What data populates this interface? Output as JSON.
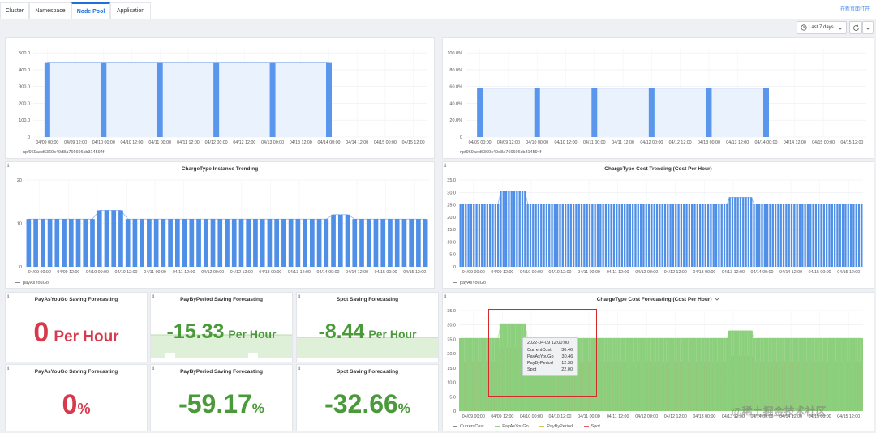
{
  "tabs": [
    "Cluster",
    "Namespace",
    "Node Pool",
    "Application"
  ],
  "new_window_link": "在新页面打开",
  "toolbar": {
    "time_range": "Last 7 days",
    "clock_icon": "clock-icon",
    "refresh_icon": "refresh-icon",
    "chevron_icon": "chevron-down-icon"
  },
  "panels": {
    "top_left": {
      "legend": "npf969aed6369c49d8a766696cb314594f"
    },
    "top_right": {
      "legend": "npf969aed6369c49d8a766696cb314594f"
    },
    "instance_trending": {
      "title": "ChargeType Instance Trending",
      "legend": "payAsYouGo"
    },
    "cost_trending": {
      "title": "ChargeType Cost Trending (Cost Per Hour)",
      "legend": "payAsYouGo"
    },
    "payg_saving": {
      "title": "PayAsYouGo Saving Forecasting",
      "value": "0",
      "unit": "Per Hour",
      "color": "#d63a4c"
    },
    "pbp_saving": {
      "title": "PayByPeriod Saving Forecasting",
      "value": "-15.33",
      "unit": "Per Hour",
      "color": "#4a9a3a"
    },
    "spot_saving": {
      "title": "Spot Saving Forecasting",
      "value": "-8.44",
      "unit": "Per Hour",
      "color": "#4a9a3a"
    },
    "payg_pct": {
      "title": "PayAsYouGo Saving Forecasting",
      "value": "0",
      "unit": "%",
      "color": "#d63a4c"
    },
    "pbp_pct": {
      "title": "PayByPeriod Saving Forecasting",
      "value": "-59.17",
      "unit": "%",
      "color": "#4a9a3a"
    },
    "spot_pct": {
      "title": "Spot Saving Forecasting",
      "value": "-32.66",
      "unit": "%",
      "color": "#4a9a3a"
    },
    "cost_forecasting": {
      "title": "ChargeType Cost Forecasting (Cost Per Hour)",
      "legend": [
        "CurrentCost",
        "PayAsYouGo",
        "PayByPeriod",
        "Spot"
      ],
      "tooltip": {
        "time": "2022-04-09 12:00:00",
        "rows": [
          {
            "name": "CurrentCost",
            "value": "30.46"
          },
          {
            "name": "PayAsYouGo",
            "value": "30.46"
          },
          {
            "name": "PayByPeriod",
            "value": "12.38"
          },
          {
            "name": "Spot",
            "value": "22.00"
          }
        ]
      }
    }
  },
  "watermark": "@稀土掘金技术社区",
  "chart_data": [
    {
      "id": "top_left",
      "type": "bar",
      "title": "",
      "x_ticks": [
        "04/09 00:00",
        "04/09 12:00",
        "04/10 00:00",
        "04/10 12:00",
        "04/11 00:00",
        "04/11 12:00",
        "04/12 00:00",
        "04/12 12:00",
        "04/13 00:00",
        "04/13 12:00",
        "04/14 00:00",
        "04/14 12:00",
        "04/15 00:00",
        "04/15 12:00"
      ],
      "y_ticks": [
        "0",
        "100.0",
        "200.0",
        "300.0",
        "400.0",
        "500.0"
      ],
      "ylim": [
        0,
        520
      ],
      "series": [
        {
          "name": "npf969aed6369c49d8a766696cb314594f",
          "bars": [
            {
              "x": 0,
              "value": 440
            },
            {
              "x": 2,
              "value": 440
            },
            {
              "x": 4,
              "value": 440
            },
            {
              "x": 6,
              "value": 440
            },
            {
              "x": 8,
              "value": 440
            },
            {
              "x": 10,
              "value": 440
            }
          ],
          "fill_until": 10
        }
      ]
    },
    {
      "id": "top_right",
      "type": "bar",
      "title": "",
      "x_ticks": [
        "04/09 00:00",
        "04/09 12:00",
        "04/10 00:00",
        "04/10 12:00",
        "04/11 00:00",
        "04/11 12:00",
        "04/12 00:00",
        "04/12 12:00",
        "04/13 00:00",
        "04/13 12:00",
        "04/14 00:00",
        "04/14 12:00",
        "04/15 00:00",
        "04/15 12:00"
      ],
      "y_ticks": [
        "0",
        "20.0%",
        "40.0%",
        "60.0%",
        "80.0%",
        "100.0%"
      ],
      "ylim": [
        0,
        104
      ],
      "series": [
        {
          "name": "npf969aed6369c49d8a766696cb314594f",
          "bars": [
            {
              "x": 0,
              "value": 58
            },
            {
              "x": 2,
              "value": 58
            },
            {
              "x": 4,
              "value": 58
            },
            {
              "x": 6,
              "value": 58
            },
            {
              "x": 8,
              "value": 58
            },
            {
              "x": 10,
              "value": 58
            }
          ],
          "fill_until": 10
        }
      ]
    },
    {
      "id": "instance_trending",
      "type": "bar",
      "title": "ChargeType Instance Trending",
      "x_ticks": [
        "04/09 00:00",
        "04/09 12:00",
        "04/10 00:00",
        "04/10 12:00",
        "04/11 00:00",
        "04/11 12:00",
        "04/12 00:00",
        "04/12 12:00",
        "04/13 00:00",
        "04/13 12:00",
        "04/14 00:00",
        "04/14 12:00",
        "04/15 00:00",
        "04/15 12:00"
      ],
      "y_ticks": [
        "0",
        "10",
        "20"
      ],
      "ylim": [
        0,
        20
      ],
      "series": [
        {
          "name": "payAsYouGo",
          "count": 57,
          "base": 11,
          "peaks": [
            {
              "from": 10,
              "to": 13,
              "value": 13
            },
            {
              "from": 43,
              "to": 45,
              "value": 12
            }
          ]
        }
      ]
    },
    {
      "id": "cost_trending",
      "type": "bar",
      "title": "ChargeType Cost Trending (Cost Per Hour)",
      "x_ticks": [
        "04/09 00:00",
        "04/09 12:00",
        "04/10 00:00",
        "04/10 12:00",
        "04/11 00:00",
        "04/11 12:00",
        "04/12 00:00",
        "04/12 12:00",
        "04/13 00:00",
        "04/13 12:00",
        "04/14 00:00",
        "04/14 12:00",
        "04/15 00:00",
        "04/15 12:00"
      ],
      "y_ticks": [
        "0",
        "5.0",
        "10.0",
        "15.0",
        "20.0",
        "25.0",
        "30.0",
        "35.0"
      ],
      "ylim": [
        0,
        35
      ],
      "series": [
        {
          "name": "payAsYouGo",
          "count": 150,
          "base": 25.4,
          "peaks": [
            {
              "from": 15,
              "to": 24,
              "value": 30.46
            },
            {
              "from": 100,
              "to": 108,
              "value": 28
            }
          ]
        }
      ]
    },
    {
      "id": "cost_forecasting",
      "type": "bar",
      "title": "ChargeType Cost Forecasting (Cost Per Hour)",
      "x_ticks": [
        "04/09 00:00",
        "04/09 12:00",
        "04/10 00:00",
        "04/10 12:00",
        "04/11 00:00",
        "04/11 12:00",
        "04/12 00:00",
        "04/12 12:00",
        "04/13 00:00",
        "04/13 12:00",
        "04/14 00:00",
        "04/14 12:00",
        "04/15 00:00",
        "04/15 12:00"
      ],
      "y_ticks": [
        "0",
        "5.0",
        "10.0",
        "15.0",
        "20.0",
        "25.0",
        "30.0",
        "35.0"
      ],
      "ylim": [
        0,
        35
      ],
      "series": [
        {
          "name": "Spot",
          "count": 150,
          "base": 17,
          "peaks": [
            {
              "from": 15,
              "to": 24,
              "value": 22
            },
            {
              "from": 100,
              "to": 108,
              "value": 19
            }
          ]
        },
        {
          "name": "PayAsYouGo",
          "count": 150,
          "base": 25.4,
          "peaks": [
            {
              "from": 15,
              "to": 24,
              "value": 30.46
            },
            {
              "from": 100,
              "to": 108,
              "value": 28
            }
          ]
        }
      ]
    }
  ]
}
